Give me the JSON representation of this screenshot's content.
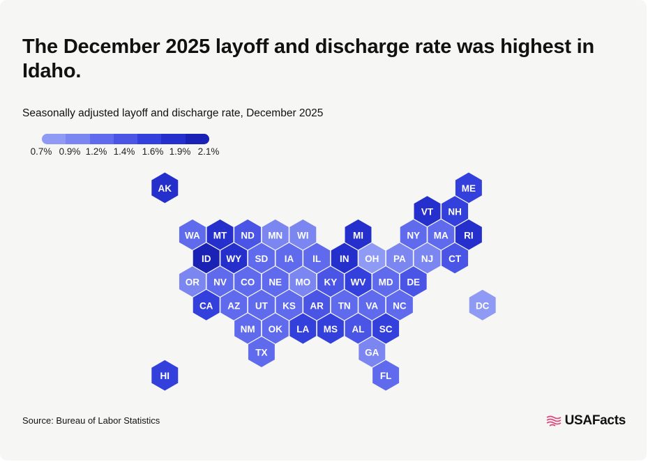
{
  "title": "The December 2025 layoff and discharge rate was highest in Idaho.",
  "subtitle": "Seasonally adjusted layoff and discharge rate, December 2025",
  "legend": {
    "labels": [
      "0.7%",
      "0.9%",
      "1.2%",
      "1.4%",
      "1.6%",
      "1.9%",
      "2.1%"
    ],
    "colors": [
      "#8f9af4",
      "#7b86f1",
      "#5f6bec",
      "#4a55e6",
      "#3440dc",
      "#2530cc",
      "#1a22b6"
    ]
  },
  "source": "Source: Bureau of Labor Statistics",
  "brand": "USAFacts",
  "chart_data": {
    "type": "hex-tile-map",
    "title": "The December 2025 layoff and discharge rate was highest in Idaho.",
    "subtitle": "Seasonally adjusted layoff and discharge rate, December 2025",
    "legend_bins": [
      "0.7%",
      "0.9%",
      "1.2%",
      "1.4%",
      "1.6%",
      "1.9%",
      "2.1%"
    ],
    "states": [
      {
        "code": "AK",
        "bin": 5
      },
      {
        "code": "ME",
        "bin": 4
      },
      {
        "code": "VT",
        "bin": 5
      },
      {
        "code": "NH",
        "bin": 4
      },
      {
        "code": "WA",
        "bin": 2
      },
      {
        "code": "MT",
        "bin": 5
      },
      {
        "code": "ND",
        "bin": 3
      },
      {
        "code": "MN",
        "bin": 1
      },
      {
        "code": "WI",
        "bin": 1
      },
      {
        "code": "MI",
        "bin": 5
      },
      {
        "code": "NY",
        "bin": 2
      },
      {
        "code": "MA",
        "bin": 2
      },
      {
        "code": "RI",
        "bin": 5
      },
      {
        "code": "ID",
        "bin": 6
      },
      {
        "code": "WY",
        "bin": 5
      },
      {
        "code": "SD",
        "bin": 2
      },
      {
        "code": "IA",
        "bin": 2
      },
      {
        "code": "IL",
        "bin": 2
      },
      {
        "code": "IN",
        "bin": 5
      },
      {
        "code": "OH",
        "bin": 0
      },
      {
        "code": "PA",
        "bin": 1
      },
      {
        "code": "NJ",
        "bin": 1
      },
      {
        "code": "CT",
        "bin": 3
      },
      {
        "code": "OR",
        "bin": 1
      },
      {
        "code": "NV",
        "bin": 2
      },
      {
        "code": "CO",
        "bin": 2
      },
      {
        "code": "NE",
        "bin": 2
      },
      {
        "code": "MO",
        "bin": 1
      },
      {
        "code": "KY",
        "bin": 3
      },
      {
        "code": "WV",
        "bin": 4
      },
      {
        "code": "MD",
        "bin": 2
      },
      {
        "code": "DE",
        "bin": 3
      },
      {
        "code": "CA",
        "bin": 4
      },
      {
        "code": "AZ",
        "bin": 2
      },
      {
        "code": "UT",
        "bin": 2
      },
      {
        "code": "KS",
        "bin": 2
      },
      {
        "code": "AR",
        "bin": 3
      },
      {
        "code": "TN",
        "bin": 2
      },
      {
        "code": "VA",
        "bin": 2
      },
      {
        "code": "NC",
        "bin": 2
      },
      {
        "code": "DC",
        "bin": 0
      },
      {
        "code": "NM",
        "bin": 2
      },
      {
        "code": "OK",
        "bin": 2
      },
      {
        "code": "LA",
        "bin": 4
      },
      {
        "code": "MS",
        "bin": 4
      },
      {
        "code": "AL",
        "bin": 3
      },
      {
        "code": "SC",
        "bin": 4
      },
      {
        "code": "TX",
        "bin": 2
      },
      {
        "code": "GA",
        "bin": 1
      },
      {
        "code": "HI",
        "bin": 4
      },
      {
        "code": "FL",
        "bin": 2
      }
    ]
  }
}
